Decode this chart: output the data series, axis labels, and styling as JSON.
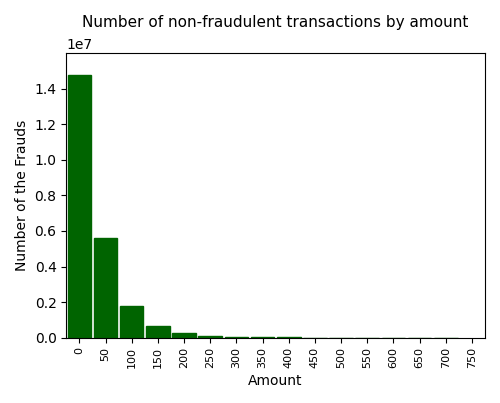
{
  "title": "Number of non-fraudulent transactions by amount",
  "xlabel": "Amount",
  "ylabel": "Number of the Frauds",
  "bar_color": "#006400",
  "bin_edges": [
    0,
    50,
    100,
    150,
    200,
    250,
    300,
    350,
    400,
    450,
    500,
    550,
    600,
    650,
    700,
    750
  ],
  "values": [
    14800000,
    5600000,
    1800000,
    650000,
    250000,
    100000,
    30000,
    15000,
    8000,
    5000,
    3000,
    2000,
    1500,
    1000,
    500
  ],
  "xlim": [
    -25,
    775
  ],
  "ylim": [
    0,
    16000000
  ],
  "xtick_positions": [
    0,
    50,
    100,
    150,
    200,
    250,
    300,
    350,
    400,
    450,
    500,
    550,
    600,
    650,
    700,
    750
  ],
  "ytick_positions": [
    0,
    2000000,
    4000000,
    6000000,
    8000000,
    10000000,
    12000000,
    14000000
  ],
  "background_color": "#ffffff"
}
